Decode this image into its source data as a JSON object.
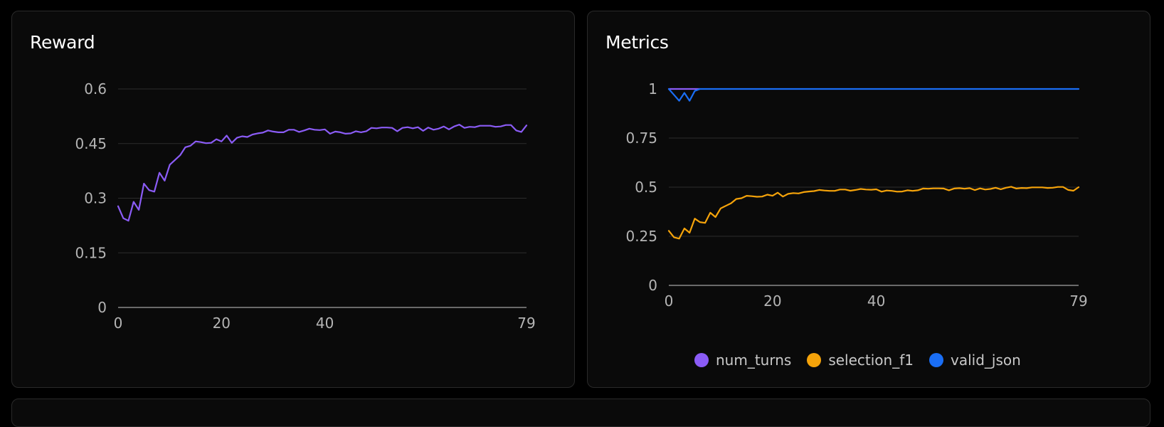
{
  "panels": {
    "reward_title": "Reward",
    "metrics_title": "Metrics"
  },
  "colors": {
    "num_turns": "#8b5cf6",
    "selection_f1": "#f5a30a",
    "valid_json": "#1a6ef5",
    "reward": "#8b5cf6"
  },
  "chart_data": [
    {
      "type": "line",
      "title": "Reward",
      "xlabel": "",
      "ylabel": "",
      "xlim": [
        0,
        79
      ],
      "ylim": [
        0,
        0.6
      ],
      "xticks": [
        "0",
        "20",
        "40",
        "79"
      ],
      "xtick_values": [
        0,
        20,
        40,
        79
      ],
      "yticks": [
        "0",
        "0.15",
        "0.3",
        "0.45",
        "0.6"
      ],
      "ytick_values": [
        0,
        0.15,
        0.3,
        0.45,
        0.6
      ],
      "grid": "horizontal",
      "series": [
        {
          "color": "#8b5cf6",
          "x": [
            0,
            1,
            2,
            3,
            4,
            5,
            6,
            7,
            8,
            9,
            10,
            11,
            12,
            13,
            14,
            15,
            16,
            17,
            18,
            19,
            20,
            21,
            22,
            23,
            24,
            25,
            26,
            27,
            28,
            29,
            30,
            31,
            32,
            33,
            34,
            35,
            36,
            37,
            38,
            39,
            40,
            41,
            42,
            43,
            44,
            45,
            46,
            47,
            48,
            49,
            50,
            51,
            52,
            53,
            54,
            55,
            56,
            57,
            58,
            59,
            60,
            61,
            62,
            63,
            64,
            65,
            66,
            67,
            68,
            69,
            70,
            71,
            72,
            73,
            74,
            75,
            76,
            77,
            78,
            79
          ],
          "values": [
            0.278,
            0.245,
            0.238,
            0.29,
            0.268,
            0.34,
            0.322,
            0.318,
            0.37,
            0.348,
            0.392,
            0.405,
            0.418,
            0.44,
            0.444,
            0.456,
            0.454,
            0.451,
            0.452,
            0.462,
            0.456,
            0.472,
            0.452,
            0.466,
            0.47,
            0.468,
            0.475,
            0.478,
            0.48,
            0.486,
            0.483,
            0.481,
            0.481,
            0.488,
            0.488,
            0.482,
            0.486,
            0.491,
            0.488,
            0.487,
            0.489,
            0.477,
            0.483,
            0.481,
            0.477,
            0.478,
            0.484,
            0.481,
            0.484,
            0.493,
            0.492,
            0.494,
            0.494,
            0.493,
            0.484,
            0.493,
            0.495,
            0.492,
            0.495,
            0.485,
            0.494,
            0.488,
            0.491,
            0.497,
            0.489,
            0.497,
            0.502,
            0.493,
            0.496,
            0.495,
            0.499,
            0.499,
            0.499,
            0.496,
            0.497,
            0.501,
            0.501,
            0.486,
            0.482,
            0.5
          ]
        }
      ]
    },
    {
      "type": "line",
      "title": "Metrics",
      "xlabel": "",
      "ylabel": "",
      "xlim": [
        0,
        79
      ],
      "ylim": [
        0,
        1
      ],
      "xticks": [
        "0",
        "20",
        "40",
        "79"
      ],
      "xtick_values": [
        0,
        20,
        40,
        79
      ],
      "yticks": [
        "0",
        "0.25",
        "0.5",
        "0.75",
        "1"
      ],
      "ytick_values": [
        0,
        0.25,
        0.5,
        0.75,
        1
      ],
      "grid": "horizontal",
      "legend": "bottom",
      "series": [
        {
          "name": "num_turns",
          "color": "#8b5cf6",
          "x": [
            0,
            1,
            2,
            3,
            4,
            5,
            6
          ],
          "values": [
            1,
            1,
            1,
            1,
            1,
            1,
            1
          ]
        },
        {
          "name": "selection_f1",
          "color": "#f5a30a",
          "x": [
            0,
            1,
            2,
            3,
            4,
            5,
            6,
            7,
            8,
            9,
            10,
            11,
            12,
            13,
            14,
            15,
            16,
            17,
            18,
            19,
            20,
            21,
            22,
            23,
            24,
            25,
            26,
            27,
            28,
            29,
            30,
            31,
            32,
            33,
            34,
            35,
            36,
            37,
            38,
            39,
            40,
            41,
            42,
            43,
            44,
            45,
            46,
            47,
            48,
            49,
            50,
            51,
            52,
            53,
            54,
            55,
            56,
            57,
            58,
            59,
            60,
            61,
            62,
            63,
            64,
            65,
            66,
            67,
            68,
            69,
            70,
            71,
            72,
            73,
            74,
            75,
            76,
            77,
            78,
            79
          ],
          "values": [
            0.278,
            0.245,
            0.238,
            0.29,
            0.268,
            0.34,
            0.322,
            0.318,
            0.37,
            0.348,
            0.392,
            0.405,
            0.418,
            0.44,
            0.444,
            0.456,
            0.454,
            0.451,
            0.452,
            0.462,
            0.456,
            0.472,
            0.452,
            0.466,
            0.47,
            0.468,
            0.475,
            0.478,
            0.48,
            0.486,
            0.483,
            0.481,
            0.481,
            0.488,
            0.488,
            0.482,
            0.486,
            0.491,
            0.488,
            0.487,
            0.489,
            0.477,
            0.483,
            0.481,
            0.477,
            0.478,
            0.484,
            0.481,
            0.484,
            0.493,
            0.492,
            0.494,
            0.494,
            0.493,
            0.484,
            0.493,
            0.495,
            0.492,
            0.495,
            0.485,
            0.494,
            0.488,
            0.491,
            0.497,
            0.489,
            0.497,
            0.502,
            0.493,
            0.496,
            0.495,
            0.499,
            0.499,
            0.499,
            0.496,
            0.497,
            0.501,
            0.501,
            0.486,
            0.482,
            0.5
          ]
        },
        {
          "name": "valid_json",
          "color": "#1a6ef5",
          "x": [
            0,
            1,
            2,
            3,
            4,
            5,
            6,
            7,
            79
          ],
          "values": [
            1,
            0.97,
            0.94,
            0.98,
            0.94,
            0.99,
            1,
            1,
            1
          ]
        }
      ]
    }
  ]
}
